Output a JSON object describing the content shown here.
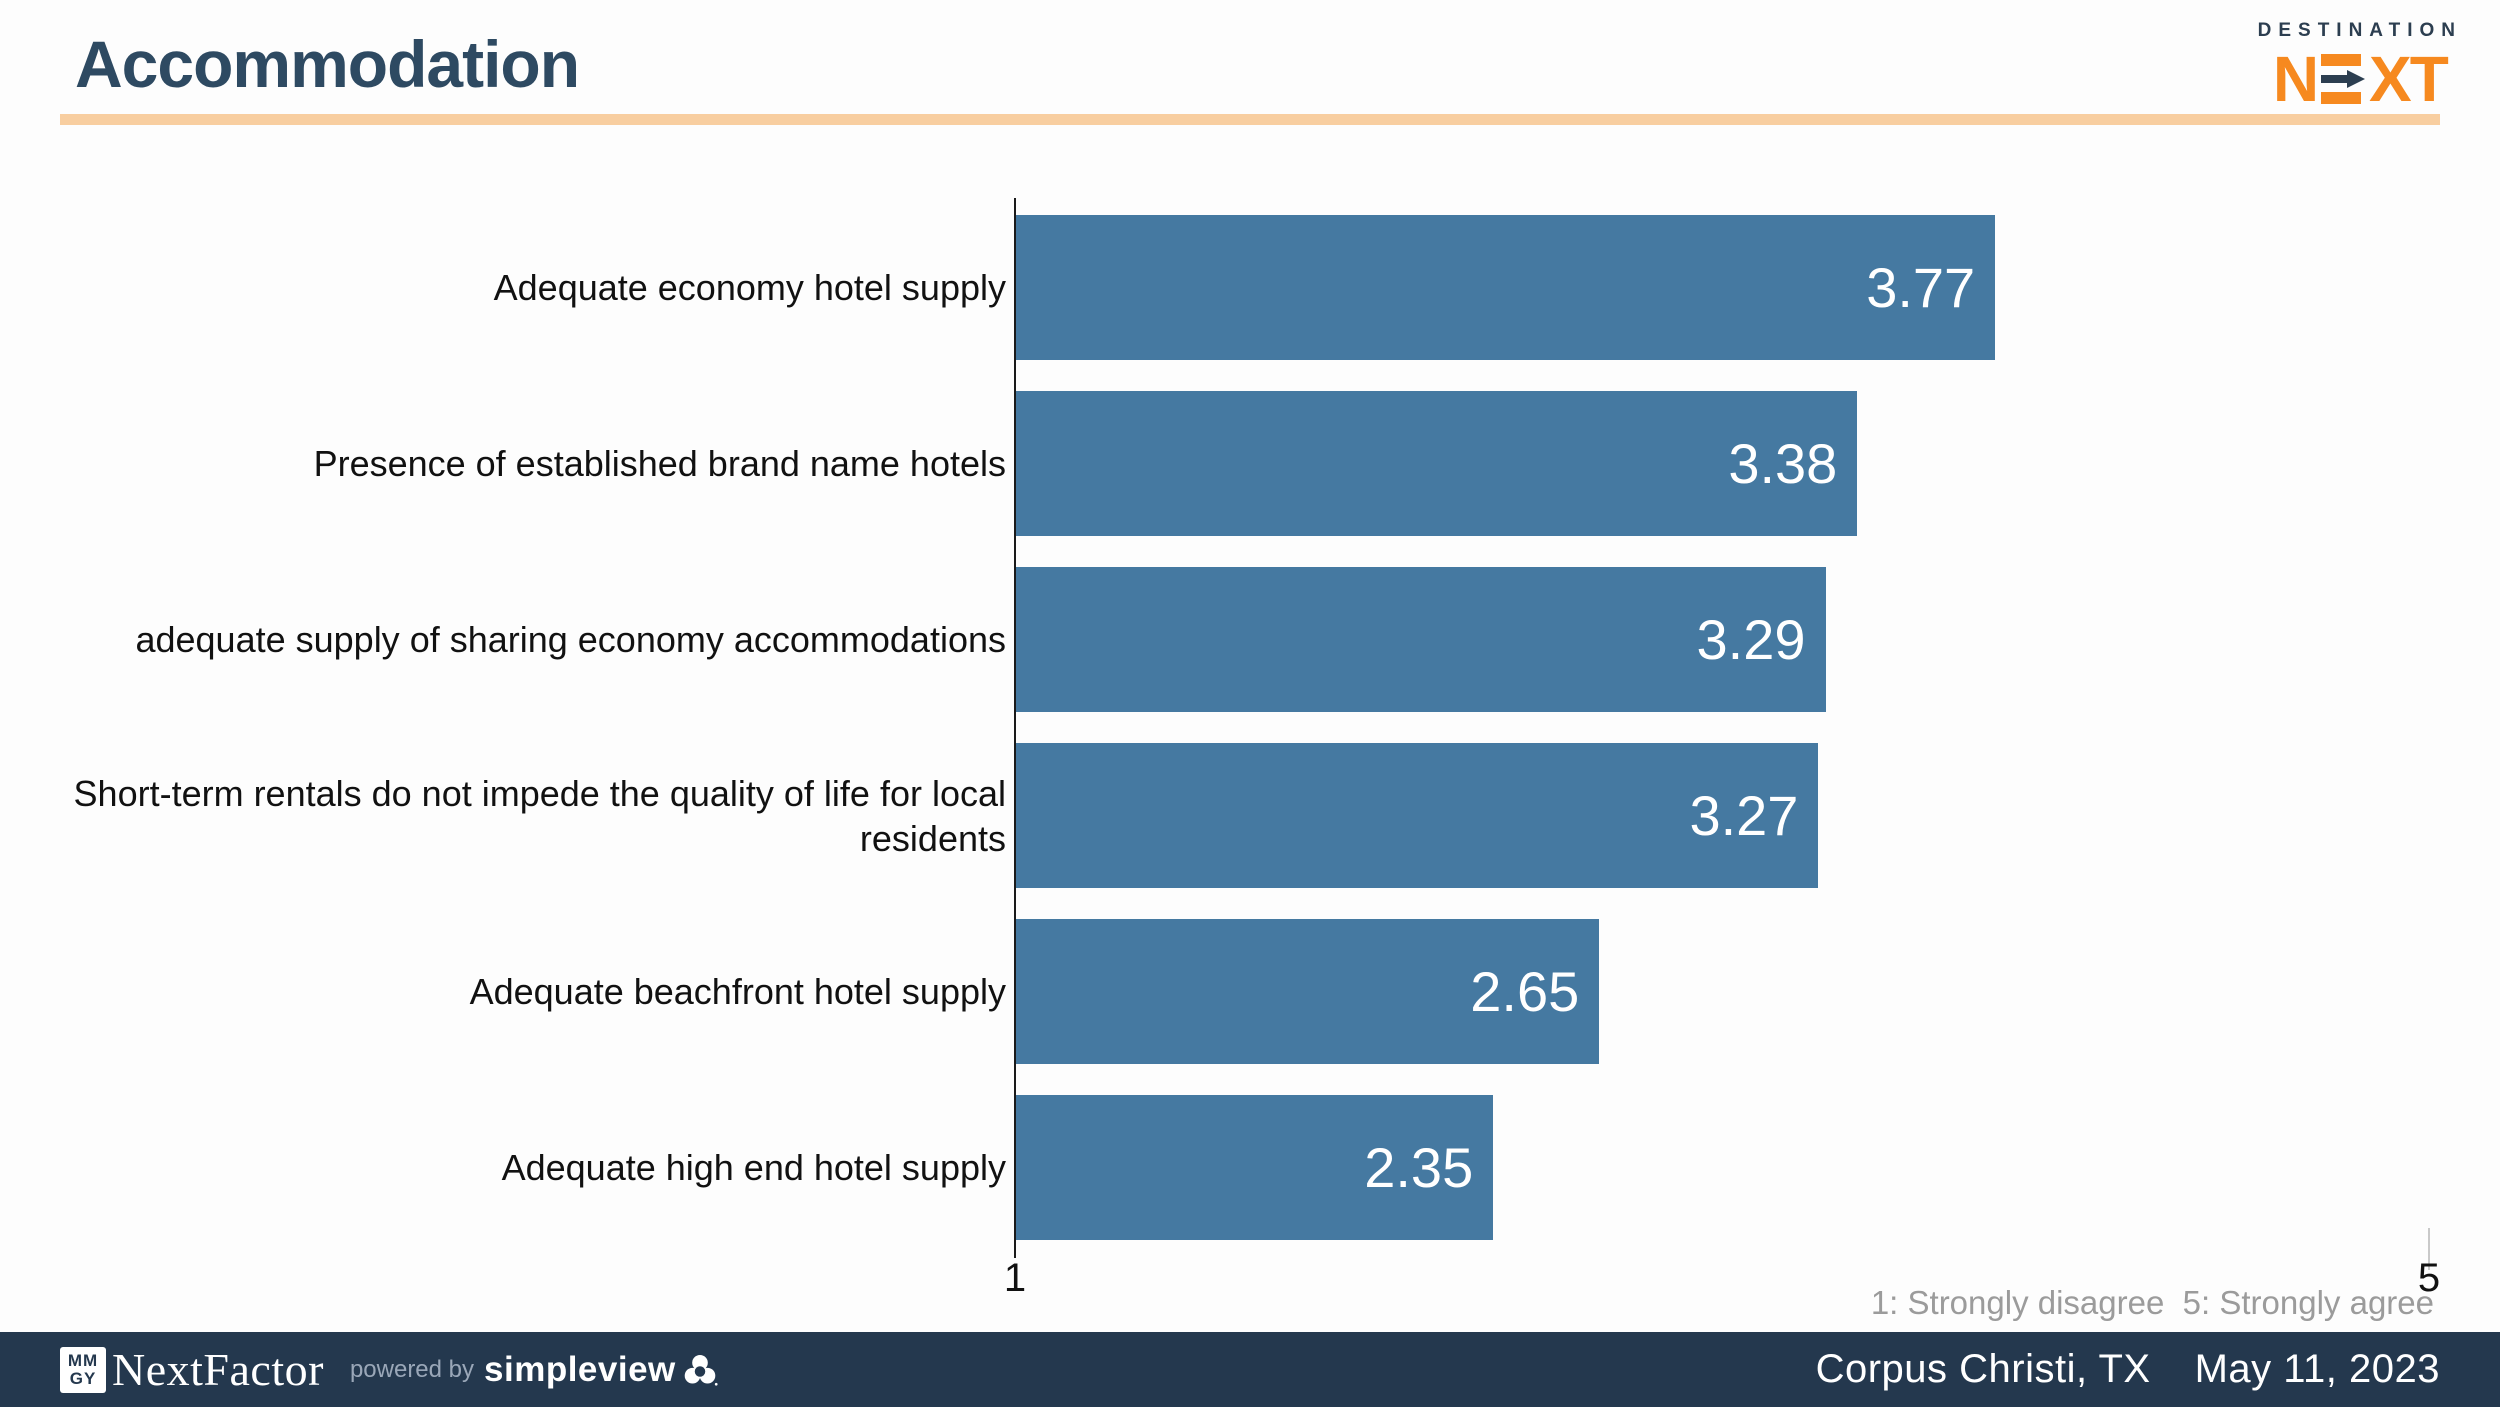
{
  "header": {
    "title": "Accommodation"
  },
  "logo": {
    "destination": "DESTINATION",
    "next_n": "N",
    "next_xt": "XT"
  },
  "chart_data": {
    "type": "bar",
    "orientation": "horizontal",
    "title": "Accommodation",
    "categories": [
      "Adequate economy hotel supply",
      "Presence of established brand name hotels",
      "adequate supply of sharing economy accommodations",
      "Short-term rentals do not impede the quality of life for local residents",
      "Adequate beachfront hotel supply",
      "Adequate high end hotel supply"
    ],
    "values": [
      3.77,
      3.38,
      3.29,
      3.27,
      2.65,
      2.35
    ],
    "xlim": [
      1,
      5
    ],
    "x_ticks": [
      "1",
      "5"
    ],
    "grid": false,
    "bar_color": "#4579A1",
    "value_label_color": "#FFFFFF",
    "legend": "1: Strongly disagree  5: Strongly agree",
    "legend_position": "bottom-right"
  },
  "footer": {
    "badge_top": "MM",
    "badge_bottom": "GY",
    "brand": "NextFactor",
    "powered_by": "powered by",
    "powered_brand": "simpleview",
    "location": "Corpus Christi, TX",
    "date": "May 11, 2023"
  },
  "colors": {
    "title": "#2E4A62",
    "accent_underline": "#F8CEA0",
    "bar": "#4579A1",
    "footer_background": "#24384E",
    "logo_orange": "#F6891F",
    "logo_navy": "#2C3E50",
    "legend_text": "#9B9B9B"
  }
}
